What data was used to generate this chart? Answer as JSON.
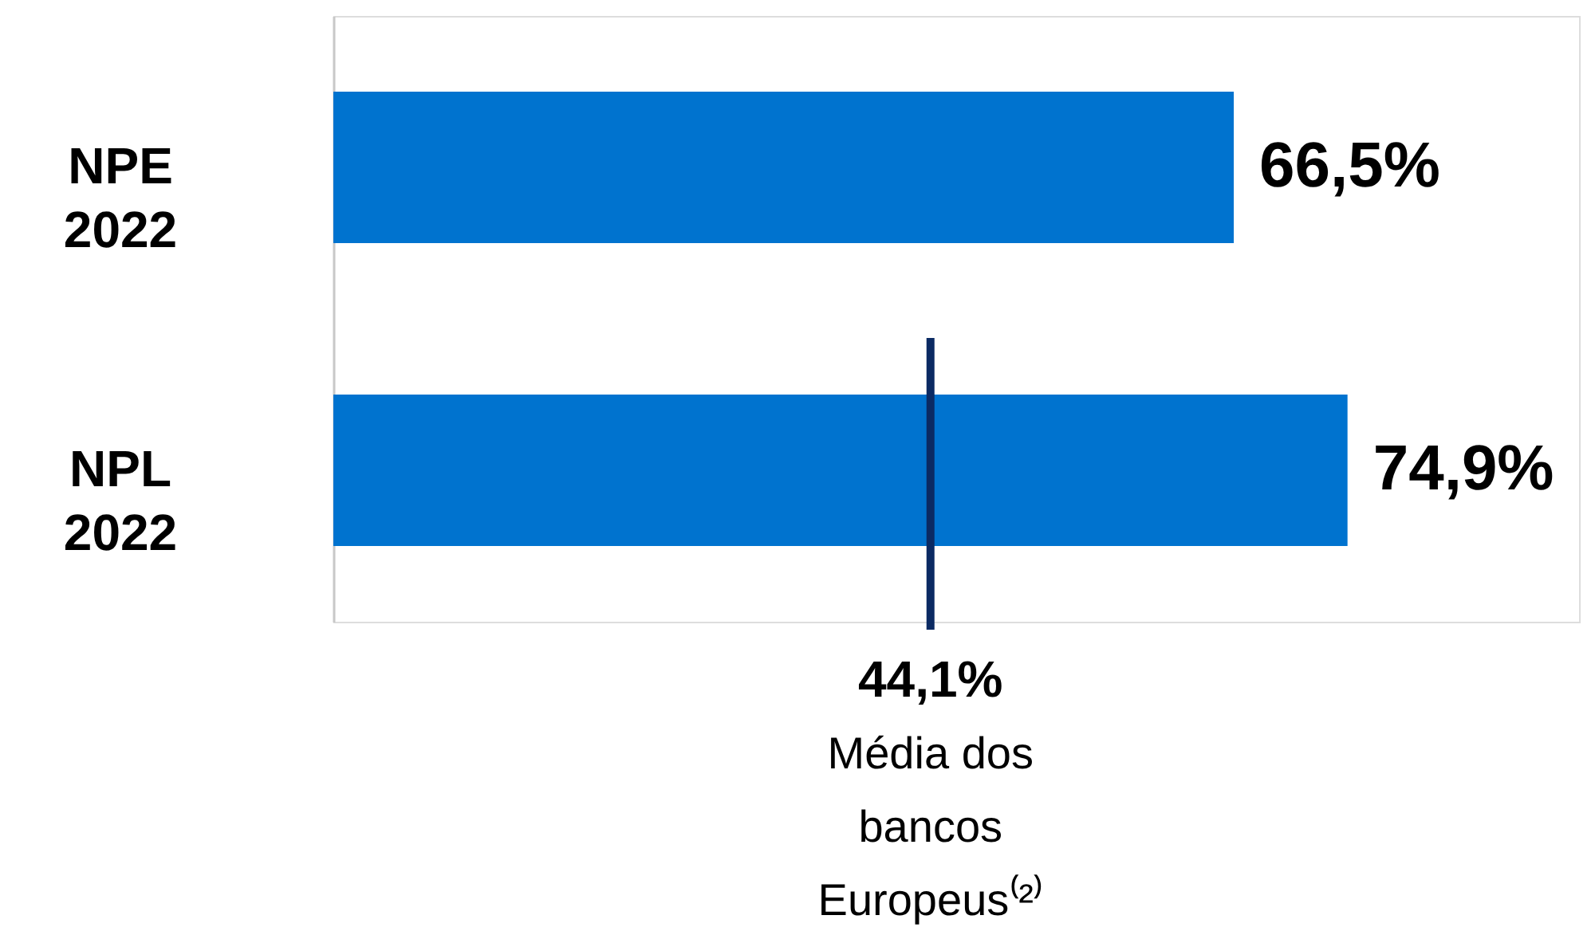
{
  "chart_data": {
    "type": "bar",
    "orientation": "horizontal",
    "categories": [
      "NPE 2022",
      "NPL 2022"
    ],
    "values": [
      66.5,
      74.9
    ],
    "value_labels": [
      "66,5%",
      "74,9%"
    ],
    "color": "#0073cf",
    "xlim": [
      0,
      92
    ],
    "ref_lines": [
      {
        "axis": "x",
        "value": 44.1,
        "label": "44,1%",
        "color": "#0b2a63"
      }
    ],
    "annotations": [
      "Média dos bancos Europeus⁽²⁾"
    ]
  }
}
